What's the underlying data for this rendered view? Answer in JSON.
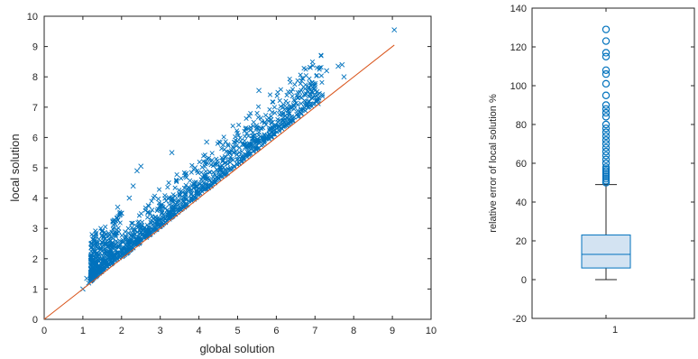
{
  "chart_data": [
    {
      "type": "scatter",
      "title": "",
      "xlabel": "global solution",
      "ylabel": "local solution",
      "xlim": [
        0,
        10
      ],
      "ylim": [
        0,
        10
      ],
      "xticks": [
        "0",
        "1",
        "2",
        "3",
        "4",
        "5",
        "6",
        "7",
        "8",
        "9",
        "10"
      ],
      "yticks": [
        "0",
        "1",
        "2",
        "3",
        "4",
        "5",
        "6",
        "7",
        "8",
        "9",
        "10"
      ],
      "marker": "x",
      "marker_color": "#0072BD",
      "reference_line": {
        "x": [
          0,
          9.05
        ],
        "y": [
          0,
          9.05
        ],
        "color": "#D95319"
      },
      "series": [
        {
          "x": [
            9.05,
            7.7,
            7.6,
            7.75,
            7.3,
            6.6,
            5.55,
            6.9,
            7.0,
            7.1,
            5.3,
            5.9,
            6.4,
            4.2,
            3.3,
            3.9,
            2.5,
            2.4,
            2.3,
            2.2,
            1.15,
            1.0,
            1.1,
            1.9,
            2.0,
            1.5,
            1.7,
            1.3
          ],
          "y": [
            9.55,
            8.4,
            8.35,
            8.0,
            8.2,
            7.35,
            7.55,
            7.7,
            7.55,
            7.3,
            6.7,
            6.5,
            7.0,
            5.85,
            5.5,
            5.0,
            5.05,
            4.9,
            4.4,
            4.0,
            1.2,
            1.0,
            1.35,
            3.7,
            3.5,
            2.9,
            2.45,
            2.6
          ]
        }
      ],
      "density_band_note": ""
    },
    {
      "type": "box",
      "title": "",
      "xlabel": "",
      "ylabel": "relative error of local solution %",
      "categories": [
        "1"
      ],
      "ylim": [
        -20,
        140
      ],
      "yticks": [
        "-20",
        "0",
        "20",
        "40",
        "60",
        "80",
        "100",
        "120",
        "140"
      ],
      "box": {
        "min": 0,
        "q1": 6,
        "median": 13,
        "q3": 23,
        "max": 49
      },
      "outliers": [
        129,
        123,
        117,
        115,
        108,
        106,
        101,
        95,
        90,
        88,
        86,
        84,
        80,
        78,
        76,
        74,
        72,
        70,
        68,
        66,
        64,
        62,
        60,
        58,
        57,
        56,
        55,
        54,
        53,
        52,
        51,
        50
      ],
      "color": "#0072BD",
      "fill": "#D3E3F2"
    }
  ]
}
